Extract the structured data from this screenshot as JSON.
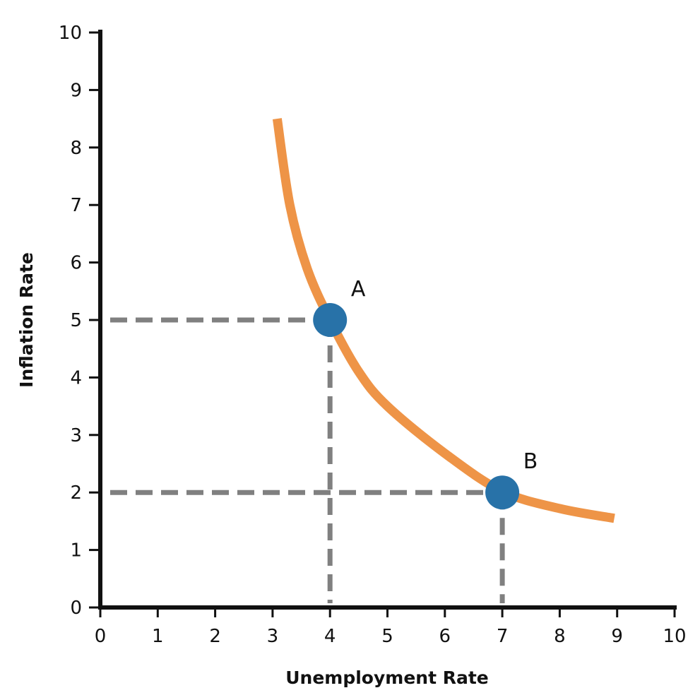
{
  "chart_data": {
    "type": "line",
    "title": "",
    "xlabel": "Unemployment Rate",
    "ylabel": "Inflation Rate",
    "xlim": [
      0,
      10
    ],
    "ylim": [
      0,
      10
    ],
    "x_ticks": [
      "0",
      "1",
      "2",
      "3",
      "4",
      "5",
      "6",
      "7",
      "8",
      "9",
      "10"
    ],
    "y_ticks": [
      "0",
      "1",
      "2",
      "3",
      "4",
      "5",
      "6",
      "7",
      "8",
      "9",
      "10"
    ],
    "grid": false,
    "curve": {
      "color": "#EE9447",
      "points": [
        [
          3.08,
          8.5
        ],
        [
          3.3,
          7.0
        ],
        [
          3.6,
          5.9
        ],
        [
          4,
          5
        ],
        [
          4.5,
          4.1
        ],
        [
          5,
          3.5
        ],
        [
          6,
          2.68
        ],
        [
          7,
          2.02
        ],
        [
          8,
          1.72
        ],
        [
          8.95,
          1.55
        ]
      ]
    },
    "points": [
      {
        "label": "A",
        "x": 4,
        "y": 5
      },
      {
        "label": "B",
        "x": 7,
        "y": 2
      }
    ],
    "point_color": "#2872A8",
    "guide_color": "#808080"
  }
}
